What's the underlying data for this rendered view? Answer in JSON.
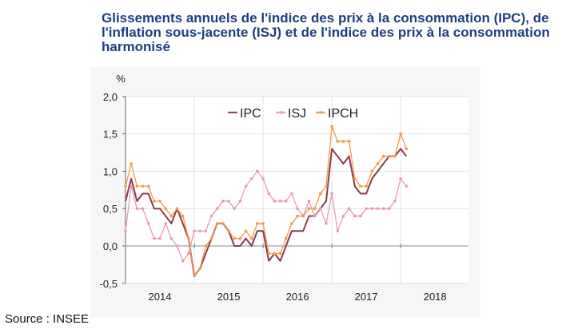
{
  "title": "Glissements annuels de l'indice des prix à la consommation (IPC), de l'inflation sous-jacente (ISJ) et de l'indice des prix à la consommation harmonisé",
  "source": "Source : INSEE",
  "chart_data": {
    "type": "line",
    "title": "Glissements annuels de l'indice des prix à la consommation (IPC), de l'inflation sous-jacente (ISJ) et de l'indice des prix à la consommation harmonisé",
    "ylabel": "%",
    "ylim": [
      -0.5,
      2.0
    ],
    "yticks": [
      "2,0",
      "1,5",
      "1,0",
      "0,5",
      "0,0",
      "-0,5"
    ],
    "ytick_values": [
      2.0,
      1.5,
      1.0,
      0.5,
      0.0,
      -0.5
    ],
    "xticks": [
      "2014",
      "2015",
      "2016",
      "2017",
      "2018"
    ],
    "x_start": "2014-01",
    "x_end": "2018-02",
    "frequency": "monthly",
    "grid": true,
    "legend": "top",
    "series": [
      {
        "name": "IPC",
        "color": "#8b3a4a",
        "marker": "none",
        "values": [
          0.6,
          0.9,
          0.6,
          0.7,
          0.7,
          0.5,
          0.5,
          0.4,
          0.3,
          0.5,
          0.3,
          0.1,
          -0.4,
          -0.3,
          -0.1,
          0.1,
          0.3,
          0.3,
          0.2,
          0.0,
          0.0,
          0.1,
          0.0,
          0.2,
          0.2,
          -0.2,
          -0.1,
          -0.2,
          0.0,
          0.2,
          0.2,
          0.2,
          0.4,
          0.4,
          0.5,
          0.6,
          1.3,
          1.2,
          1.1,
          1.2,
          0.8,
          0.7,
          0.7,
          0.9,
          1.0,
          1.1,
          1.2,
          1.2,
          1.3,
          1.2
        ]
      },
      {
        "name": "ISJ",
        "color": "#e89ab8",
        "marker": "dot",
        "values": [
          0.2,
          0.8,
          0.5,
          0.5,
          0.3,
          0.1,
          0.1,
          0.3,
          0.1,
          0.0,
          -0.2,
          -0.1,
          0.2,
          0.2,
          0.2,
          0.4,
          0.5,
          0.6,
          0.6,
          0.5,
          0.6,
          0.8,
          0.9,
          1.0,
          0.9,
          0.7,
          0.6,
          0.6,
          0.6,
          0.7,
          0.5,
          0.4,
          0.6,
          0.4,
          0.5,
          0.3,
          0.7,
          0.2,
          0.4,
          0.5,
          0.4,
          0.4,
          0.5,
          0.5,
          0.5,
          0.5,
          0.5,
          0.6,
          0.9,
          0.8
        ]
      },
      {
        "name": "IPCH",
        "color": "#f39a4a",
        "marker": "dot",
        "values": [
          0.8,
          1.1,
          0.8,
          0.8,
          0.8,
          0.6,
          0.6,
          0.5,
          0.4,
          0.5,
          0.4,
          0.1,
          -0.4,
          -0.3,
          0.0,
          0.1,
          0.3,
          0.3,
          0.2,
          0.1,
          0.1,
          0.2,
          0.1,
          0.3,
          0.3,
          -0.1,
          -0.1,
          -0.1,
          0.1,
          0.3,
          0.4,
          0.4,
          0.5,
          0.5,
          0.7,
          0.8,
          1.6,
          1.4,
          1.4,
          1.4,
          0.9,
          0.8,
          0.8,
          1.0,
          1.1,
          1.2,
          1.2,
          1.2,
          1.5,
          1.3
        ]
      }
    ]
  }
}
